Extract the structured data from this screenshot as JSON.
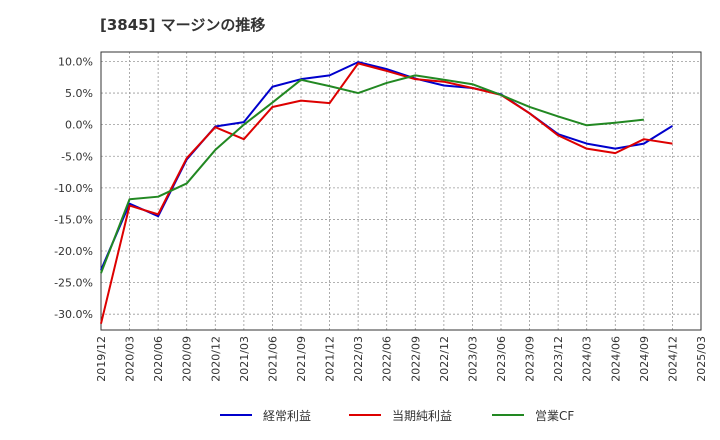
{
  "chart_data": {
    "type": "line",
    "title": "[3845]  マージンの推移",
    "xlabel": "",
    "ylabel": "",
    "ylim": [
      -32.5,
      11.5
    ],
    "yticks": [
      10,
      5,
      0,
      -5,
      -10,
      -15,
      -20,
      -25,
      -30
    ],
    "ytick_labels": [
      "10.0%",
      "5.0%",
      "0.0%",
      "-5.0%",
      "-10.0%",
      "-15.0%",
      "-20.0%",
      "-25.0%",
      "-30.0%"
    ],
    "x_ticks": [
      "2019/12",
      "2020/03",
      "2020/06",
      "2020/09",
      "2020/12",
      "2021/03",
      "2021/06",
      "2021/09",
      "2021/12",
      "2022/03",
      "2022/06",
      "2022/09",
      "2022/12",
      "2023/03",
      "2023/06",
      "2023/09",
      "2023/12",
      "2024/03",
      "2024/06",
      "2024/09",
      "2024/12",
      "2025/03"
    ],
    "grid": true,
    "legend_position": "bottom",
    "series": [
      {
        "name": "経常利益",
        "color": "#0000cc",
        "values": [
          -23.0,
          -12.5,
          -14.5,
          -5.5,
          -0.3,
          0.4,
          6.0,
          7.2,
          7.8,
          9.9,
          8.8,
          7.3,
          6.2,
          5.8,
          4.8,
          1.8,
          -1.5,
          -3.0,
          -3.8,
          -3.0,
          -0.2,
          null
        ]
      },
      {
        "name": "当期純利益",
        "color": "#dd0000",
        "values": [
          -31.5,
          -12.8,
          -14.2,
          -5.3,
          -0.4,
          -2.3,
          2.8,
          3.8,
          3.4,
          9.7,
          8.5,
          7.2,
          6.8,
          5.8,
          4.7,
          1.8,
          -1.7,
          -3.8,
          -4.5,
          -2.3,
          -3.0,
          null
        ]
      },
      {
        "name": "営業CF",
        "color": "#228822",
        "values": [
          -23.5,
          -11.8,
          -11.4,
          -9.3,
          -4.0,
          0.0,
          3.5,
          7.1,
          6.1,
          5.0,
          6.6,
          7.8,
          7.1,
          6.4,
          4.7,
          2.8,
          1.3,
          -0.1,
          0.3,
          0.8,
          null,
          null
        ]
      }
    ]
  }
}
